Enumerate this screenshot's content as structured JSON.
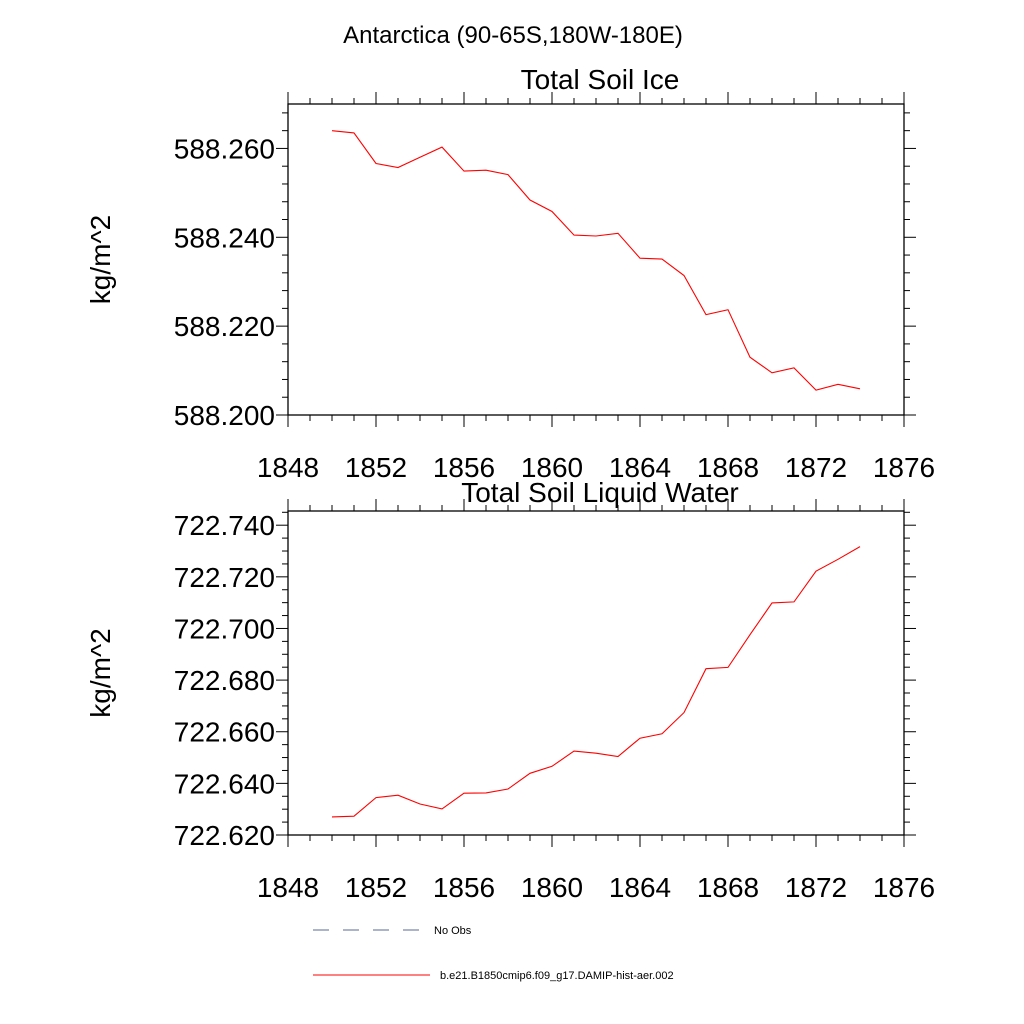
{
  "figure": {
    "region_title": "Antarctica (90-65S,180W-180E)"
  },
  "chart_data": [
    {
      "type": "line",
      "title": "Total Soil Ice",
      "xlabel": "",
      "ylabel": "kg/m^2",
      "xlim": [
        1848,
        1876
      ],
      "ylim": [
        588.2,
        588.27
      ],
      "xticks": [
        1848,
        1852,
        1856,
        1860,
        1864,
        1868,
        1872,
        1876
      ],
      "xtick_labels": [
        "1848",
        "1852",
        "1856",
        "1860",
        "1864",
        "1868",
        "1872",
        "1876"
      ],
      "yticks": [
        588.2,
        588.22,
        588.24,
        588.26
      ],
      "ytick_labels": [
        "588.200",
        "588.220",
        "588.240",
        "588.260"
      ],
      "grid": false,
      "series": [
        {
          "name": "b.e21.B1850cmip6.f09_g17.DAMIP-hist-aer.002",
          "color": "#ff0000",
          "x": [
            1850,
            1851,
            1852,
            1853,
            1854,
            1855,
            1856,
            1857,
            1858,
            1859,
            1860,
            1861,
            1862,
            1863,
            1864,
            1865,
            1866,
            1867,
            1868,
            1869,
            1870,
            1871,
            1872,
            1873,
            1874
          ],
          "values": [
            588.264,
            588.2635,
            588.2566,
            588.2557,
            588.258,
            588.2603,
            588.2549,
            588.2551,
            588.2541,
            588.2484,
            588.2458,
            588.2405,
            588.2403,
            588.2409,
            588.2353,
            588.2351,
            588.2314,
            588.2226,
            588.2237,
            588.213,
            588.2095,
            588.2106,
            588.2056,
            588.2069,
            588.2059
          ]
        }
      ]
    },
    {
      "type": "line",
      "title": "Total Soil Liquid Water",
      "xlabel": "",
      "ylabel": "kg/m^2",
      "xlim": [
        1848,
        1876
      ],
      "ylim": [
        722.62,
        722.7455
      ],
      "xticks": [
        1848,
        1852,
        1856,
        1860,
        1864,
        1868,
        1872,
        1876
      ],
      "xtick_labels": [
        "1848",
        "1852",
        "1856",
        "1860",
        "1864",
        "1868",
        "1872",
        "1876"
      ],
      "yticks": [
        722.62,
        722.64,
        722.66,
        722.68,
        722.7,
        722.72,
        722.74
      ],
      "ytick_labels": [
        "722.620",
        "722.640",
        "722.660",
        "722.680",
        "722.700",
        "722.720",
        "722.740"
      ],
      "grid": false,
      "series": [
        {
          "name": "b.e21.B1850cmip6.f09_g17.DAMIP-hist-aer.002",
          "color": "#ff0000",
          "x": [
            1850,
            1851,
            1852,
            1853,
            1854,
            1855,
            1856,
            1857,
            1858,
            1859,
            1860,
            1861,
            1862,
            1863,
            1864,
            1865,
            1866,
            1867,
            1868,
            1869,
            1870,
            1871,
            1872,
            1873,
            1874
          ],
          "values": [
            722.627,
            722.6273,
            722.6345,
            722.6354,
            722.632,
            722.6301,
            722.6362,
            722.6363,
            722.6378,
            722.6439,
            722.6466,
            722.6525,
            722.6517,
            722.6504,
            722.6575,
            722.6592,
            722.6674,
            722.6844,
            722.6849,
            722.6976,
            722.7099,
            722.7103,
            722.7222,
            722.7268,
            722.7317
          ]
        }
      ]
    }
  ],
  "legend": {
    "placement": "bottom",
    "entries": [
      {
        "label": "No Obs",
        "color": "#5a6a9a",
        "style": "dashed"
      },
      {
        "label": "b.e21.B1850cmip6.f09_g17.DAMIP-hist-aer.002",
        "color": "#ff0000",
        "style": "solid"
      }
    ]
  }
}
